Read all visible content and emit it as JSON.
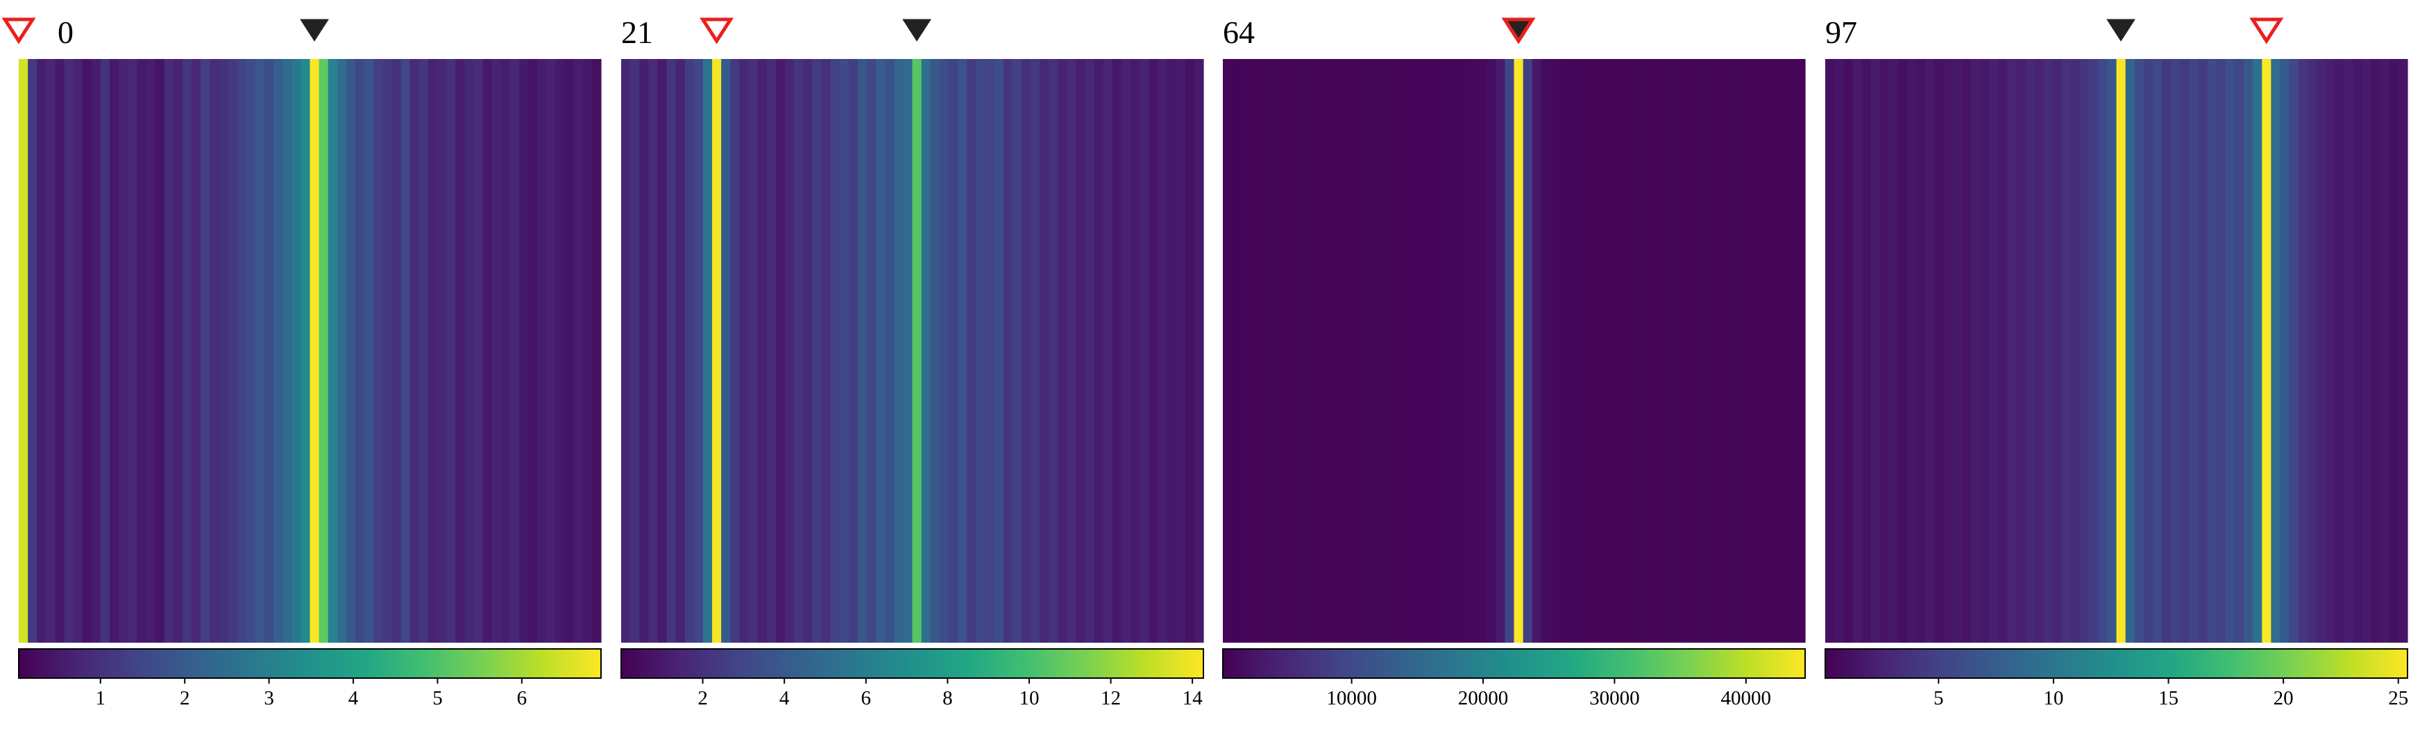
{
  "chart_data": [
    {
      "type": "heatmap",
      "title": "0",
      "colormap": "viridis",
      "xlim": [
        0,
        64
      ],
      "values": [
        6.5,
        1.2,
        0.6,
        0.8,
        0.5,
        0.9,
        0.7,
        0.4,
        0.6,
        1.0,
        0.5,
        0.7,
        0.8,
        0.5,
        0.6,
        0.4,
        0.9,
        0.7,
        1.1,
        0.8,
        1.3,
        0.9,
        1.0,
        1.2,
        1.4,
        1.6,
        1.9,
        1.7,
        2.1,
        2.4,
        2.8,
        3.3,
        6.9,
        5.2,
        3.1,
        2.5,
        1.9,
        1.5,
        1.8,
        1.3,
        1.2,
        1.0,
        1.5,
        0.9,
        1.1,
        0.7,
        0.8,
        1.0,
        0.6,
        0.8,
        0.9,
        0.5,
        0.7,
        0.6,
        0.8,
        0.5,
        0.4,
        0.6,
        0.7,
        0.5,
        0.4,
        0.6,
        0.5,
        0.3
      ],
      "clim": [
        0.03,
        6.94
      ],
      "cticks": [
        1,
        2,
        3,
        4,
        5,
        6
      ],
      "markers": [
        {
          "column": 0,
          "color": "#e8201e",
          "filled": false
        },
        {
          "column": 32,
          "color": "#222222",
          "filled": true
        }
      ]
    },
    {
      "type": "heatmap",
      "title": "21",
      "colormap": "viridis",
      "xlim": [
        0,
        64
      ],
      "values": [
        1.5,
        2.0,
        1.2,
        1.8,
        1.0,
        2.2,
        1.4,
        2.6,
        3.0,
        5.5,
        14.1,
        4.0,
        2.4,
        1.6,
        2.0,
        1.3,
        1.8,
        1.1,
        1.5,
        2.2,
        1.7,
        2.5,
        1.9,
        2.8,
        3.2,
        2.6,
        3.8,
        3.0,
        4.2,
        3.5,
        4.6,
        5.0,
        10.5,
        5.2,
        3.9,
        3.4,
        2.8,
        3.6,
        2.5,
        3.1,
        2.9,
        3.4,
        2.2,
        2.7,
        1.9,
        2.4,
        1.6,
        2.0,
        1.4,
        1.8,
        1.2,
        1.6,
        1.1,
        1.5,
        0.9,
        1.3,
        1.0,
        1.4,
        0.8,
        1.2,
        0.9,
        1.1,
        0.7,
        1.0
      ],
      "clim": [
        0,
        14.27
      ],
      "cticks": [
        2,
        4,
        6,
        8,
        10,
        12,
        14
      ],
      "markers": [
        {
          "column": 10,
          "color": "#e8201e",
          "filled": false
        },
        {
          "column": 32,
          "color": "#222222",
          "filled": true
        }
      ]
    },
    {
      "type": "heatmap",
      "title": "64",
      "colormap": "viridis",
      "xlim": [
        0,
        64
      ],
      "values": [
        800,
        750,
        820,
        780,
        760,
        800,
        790,
        770,
        810,
        780,
        800,
        760,
        820,
        790,
        770,
        800,
        780,
        800,
        820,
        790,
        810,
        830,
        850,
        880,
        900,
        950,
        1000,
        1100,
        1300,
        1800,
        3500,
        9000,
        44300,
        8500,
        3000,
        1600,
        1200,
        1000,
        900,
        850,
        820,
        800,
        790,
        810,
        780,
        800,
        770,
        790,
        800,
        780,
        760,
        790,
        770,
        800,
        780,
        760,
        790,
        770,
        800,
        780,
        760,
        790,
        770,
        750
      ],
      "clim": [
        200,
        44500
      ],
      "cticks": [
        10000,
        20000,
        30000,
        40000
      ],
      "markers": [
        {
          "column": 32,
          "color": "#222222",
          "filled": true
        },
        {
          "column": 32,
          "color": "#e8201e",
          "filled": false
        }
      ]
    },
    {
      "type": "heatmap",
      "title": "97",
      "colormap": "viridis",
      "xlim": [
        0,
        64
      ],
      "values": [
        1.2,
        1.5,
        1.0,
        1.8,
        1.3,
        2.0,
        1.4,
        1.7,
        1.1,
        1.6,
        1.3,
        1.9,
        1.2,
        1.5,
        1.8,
        1.4,
        2.0,
        1.7,
        2.3,
        1.9,
        2.6,
        2.2,
        3.0,
        2.5,
        3.2,
        2.8,
        3.6,
        3.3,
        4.0,
        4.6,
        5.5,
        7.0,
        25.2,
        8.5,
        6.0,
        4.8,
        5.6,
        4.2,
        5.0,
        4.4,
        5.2,
        4.6,
        5.8,
        4.9,
        6.2,
        5.4,
        7.0,
        9.5,
        25.3,
        9.0,
        7.2,
        5.5,
        4.0,
        3.2,
        2.6,
        2.2,
        1.8,
        2.1,
        1.6,
        1.9,
        1.4,
        1.7,
        1.2,
        1.5
      ],
      "clim": [
        0.07,
        25.4
      ],
      "cticks": [
        5,
        10,
        15,
        20,
        25
      ],
      "markers": [
        {
          "column": 32,
          "color": "#222222",
          "filled": true
        },
        {
          "column": 48,
          "color": "#e8201e",
          "filled": false
        }
      ]
    }
  ]
}
